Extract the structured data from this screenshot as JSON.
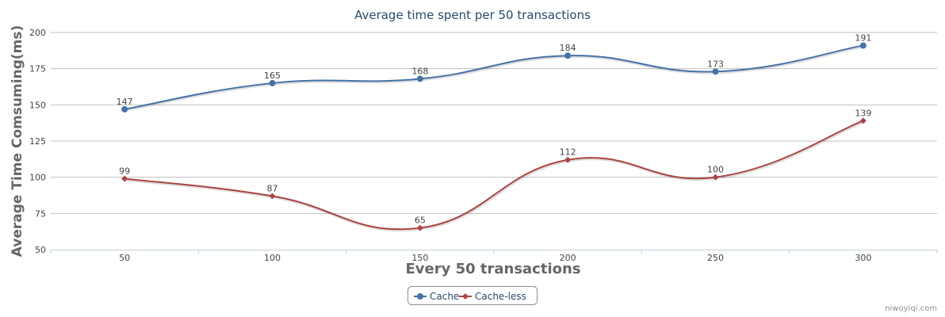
{
  "chart_data": {
    "type": "line",
    "title": "Average time spent per 50 transactions",
    "xlabel": "Every 50 transactions",
    "ylabel": "Average Time Comsuming(ms)",
    "categories": [
      "50",
      "100",
      "150",
      "200",
      "250",
      "300"
    ],
    "y_ticks": [
      50,
      75,
      100,
      125,
      150,
      175,
      200
    ],
    "ylim": [
      50,
      200
    ],
    "grid": true,
    "legend_position": "bottom-center",
    "series": [
      {
        "name": "Cache",
        "values": [
          147,
          165,
          168,
          184,
          173,
          191
        ],
        "color": "#4572a7",
        "marker": "circle"
      },
      {
        "name": "Cache-less",
        "values": [
          99,
          87,
          65,
          112,
          100,
          139
        ],
        "color": "#aa4643",
        "marker": "diamond"
      }
    ]
  },
  "credit": "niwoyiqi.com"
}
